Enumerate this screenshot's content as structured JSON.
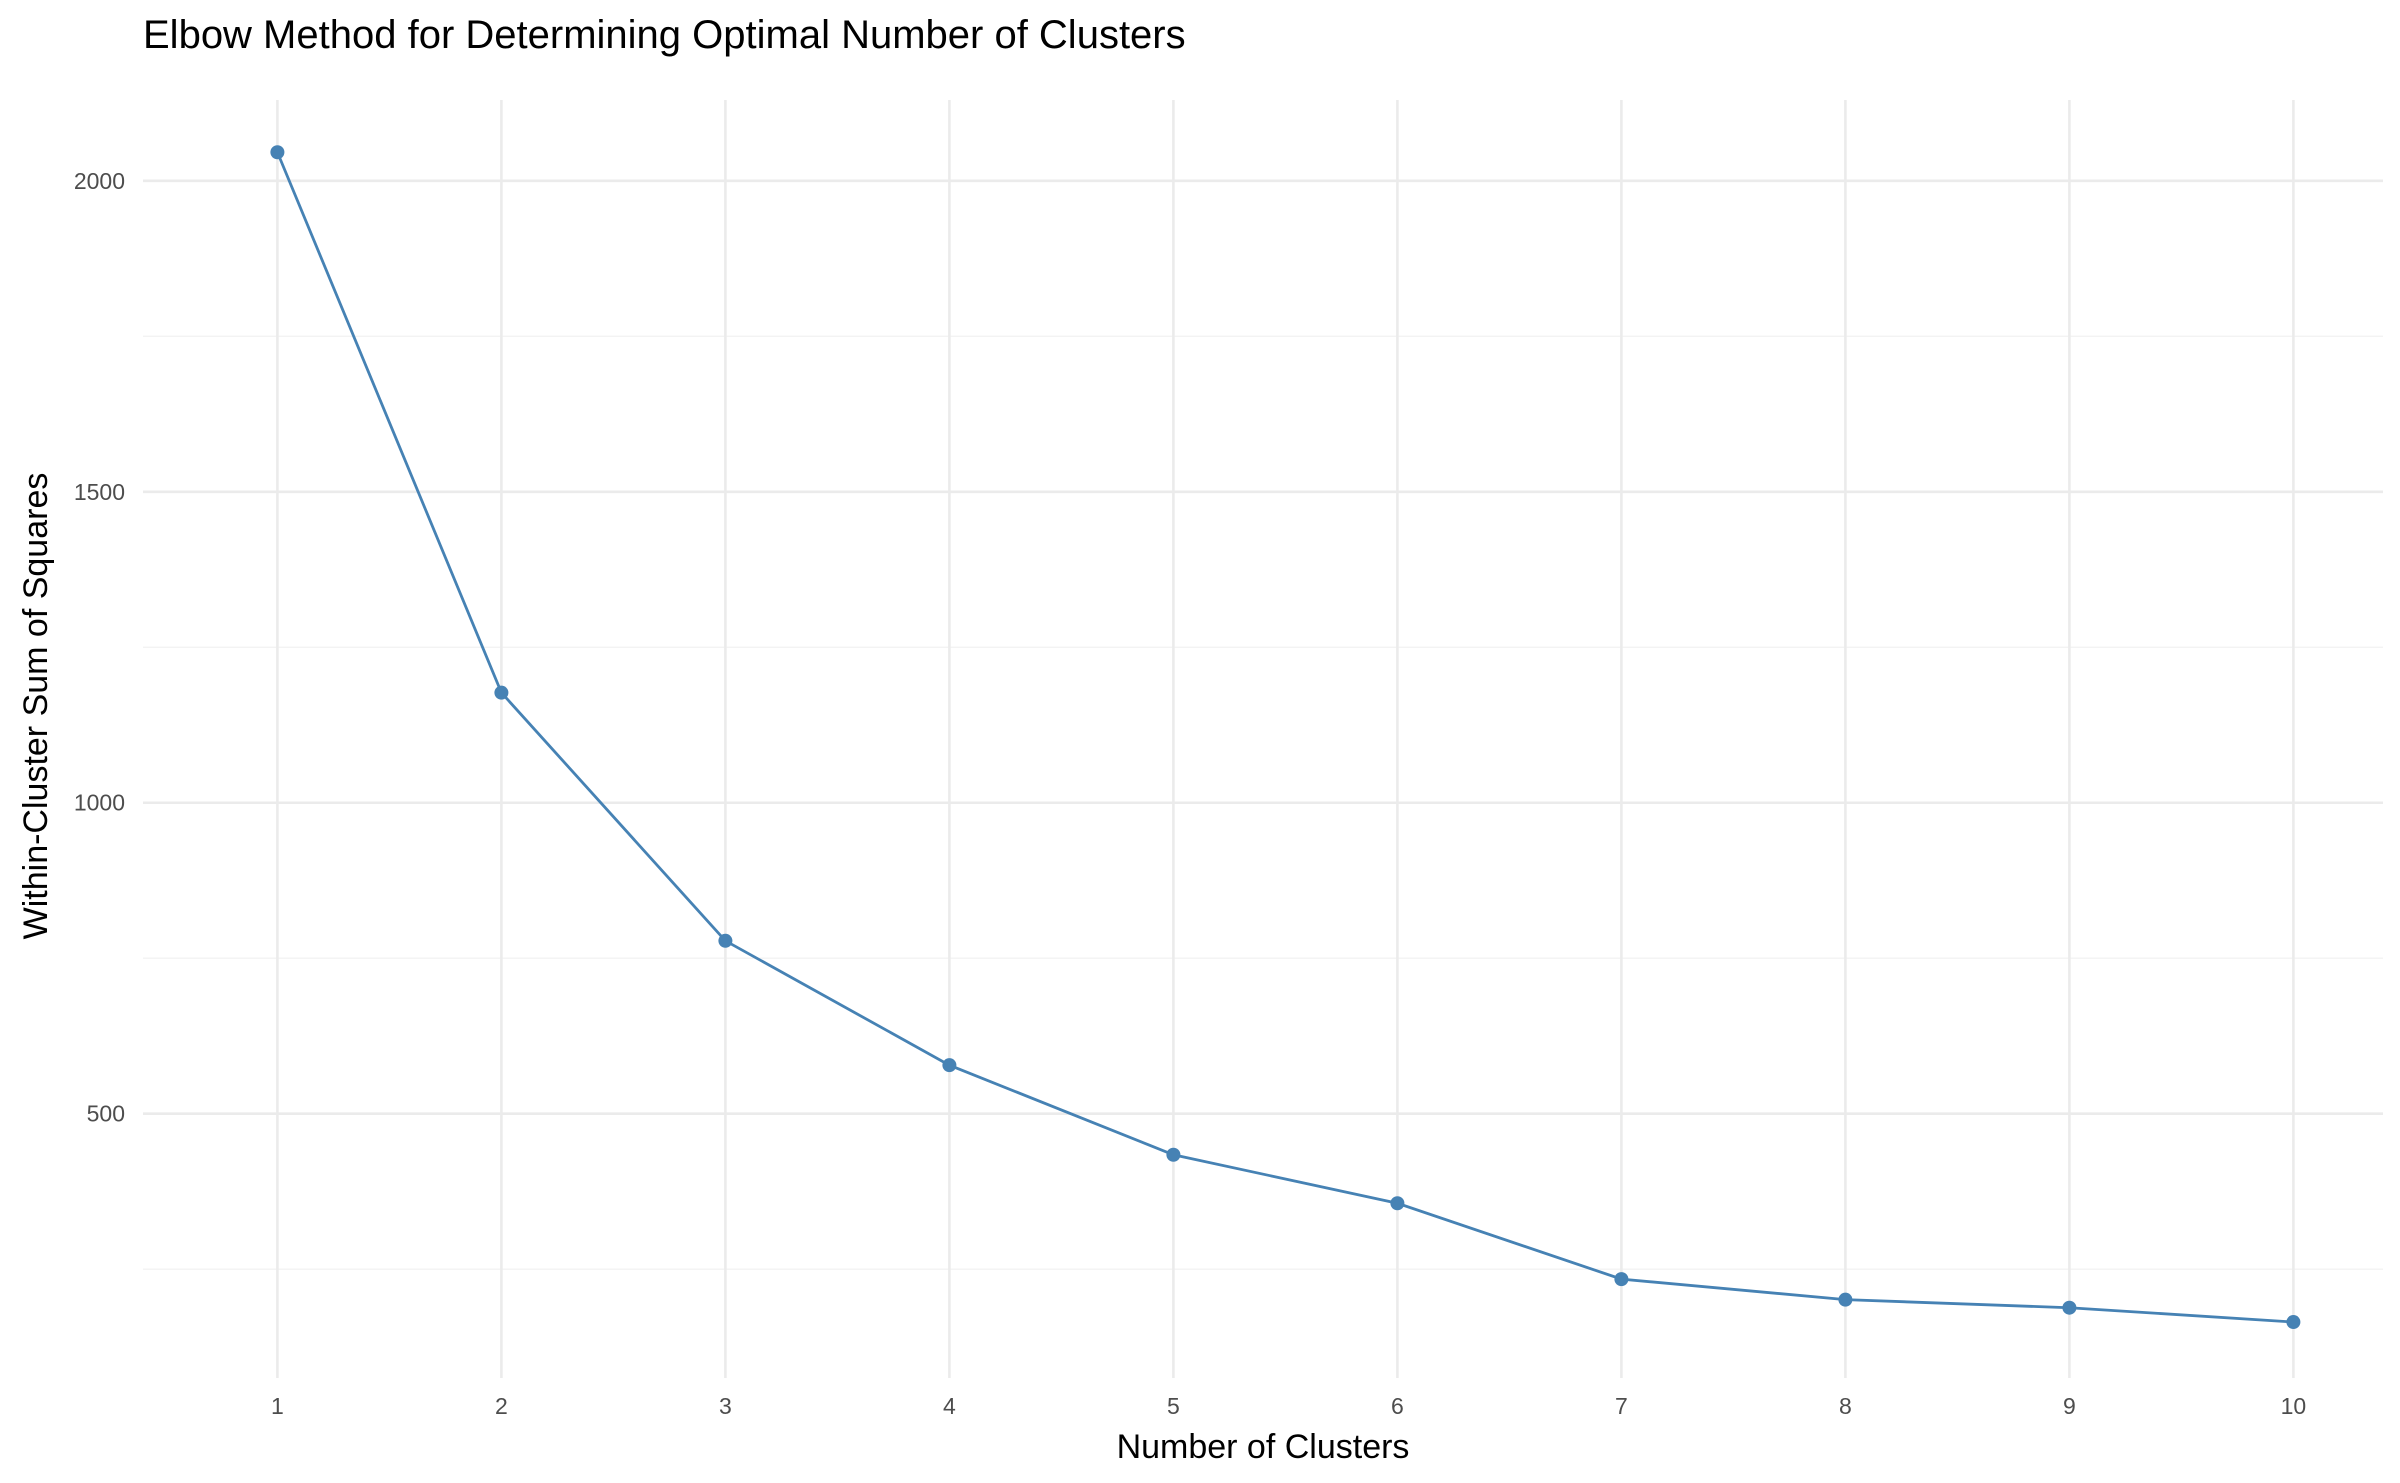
{
  "chart_data": {
    "type": "line",
    "title": "Elbow Method for Determining Optimal Number of Clusters",
    "xlabel": "Number of Clusters",
    "ylabel": "Within-Cluster Sum of Squares",
    "x": [
      1,
      2,
      3,
      4,
      5,
      6,
      7,
      8,
      9,
      10
    ],
    "y": [
      2046,
      1177,
      778,
      578,
      434,
      356,
      234,
      201,
      188,
      165
    ],
    "x_ticks": [
      1,
      2,
      3,
      4,
      5,
      6,
      7,
      8,
      9,
      10
    ],
    "y_ticks": [
      500,
      1000,
      1500,
      2000
    ],
    "xlim": [
      0.4,
      10.4
    ],
    "ylim": [
      75,
      2130
    ],
    "grid": true,
    "color": "#4682b4"
  }
}
